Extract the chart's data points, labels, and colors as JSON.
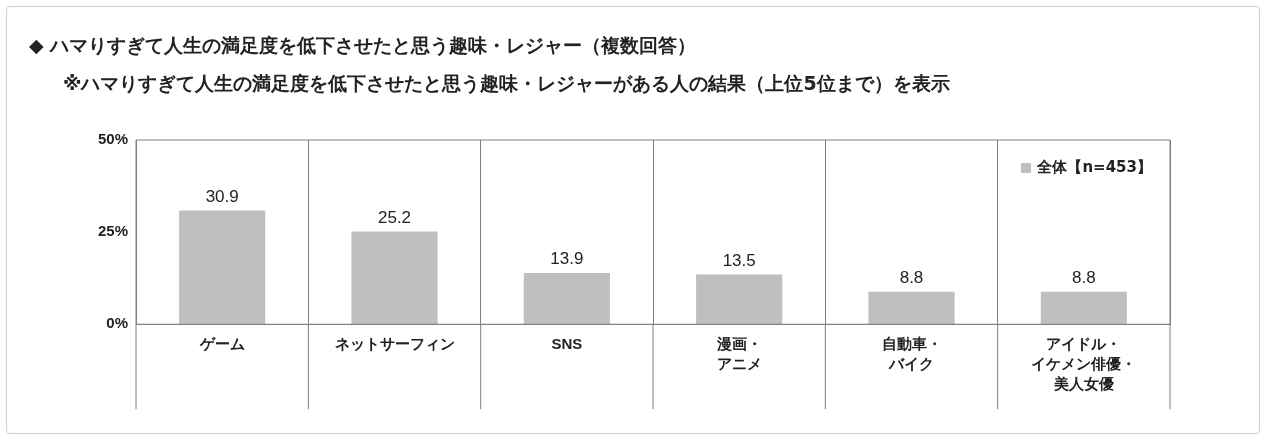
{
  "chart_data": {
    "type": "bar",
    "title": "◆ ハマりすぎて人生の満足度を低下させたと思う趣味・レジャー（複数回答）",
    "subtitle": "※ハマりすぎて人生の満足度を低下させたと思う趣味・レジャーがある人の結果（上位5位まで）を表示",
    "categories": [
      "ゲーム",
      "ネットサーフィン",
      "SNS",
      "漫画・アニメ",
      "自動車・バイク",
      "アイドル・イケメン俳優・美人女優"
    ],
    "series": [
      {
        "name": "全体【n=453】",
        "color": "#bfbfbf",
        "values": [
          30.9,
          25.2,
          13.9,
          13.5,
          8.8,
          8.8
        ]
      }
    ],
    "ylim": [
      0,
      50
    ],
    "yticks": [
      {
        "value": 0,
        "label": "0%"
      },
      {
        "value": 25,
        "label": "25%"
      },
      {
        "value": 50,
        "label": "50%"
      }
    ],
    "grid": "x",
    "legend": "top right",
    "data_labels": true
  }
}
